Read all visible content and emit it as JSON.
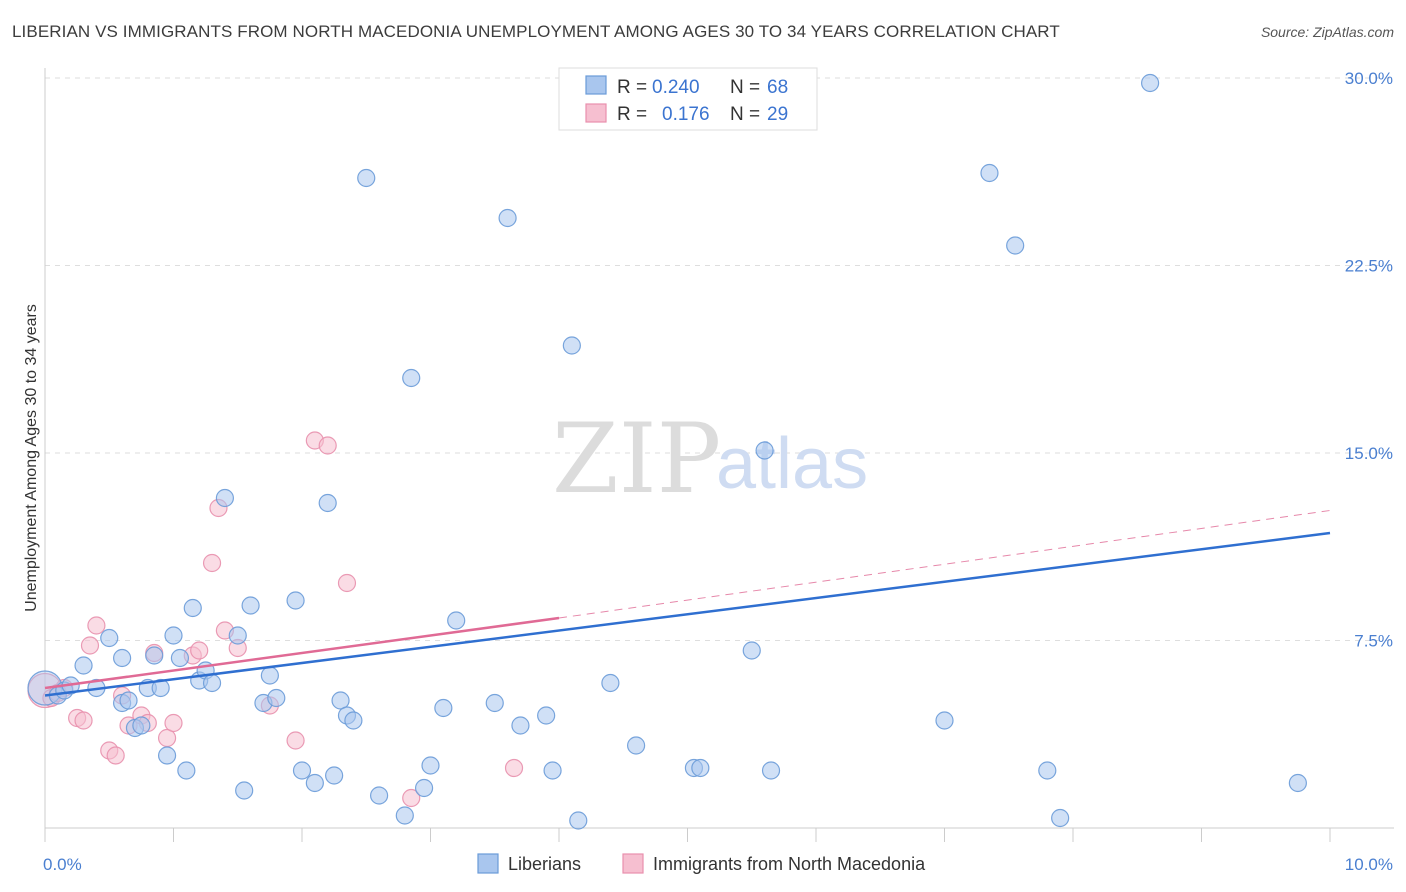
{
  "header": {
    "title": "LIBERIAN VS IMMIGRANTS FROM NORTH MACEDONIA UNEMPLOYMENT AMONG AGES 30 TO 34 YEARS CORRELATION CHART",
    "source": "Source: ZipAtlas.com"
  },
  "watermark": {
    "zip": "ZIP",
    "atlas": "atlas"
  },
  "colors": {
    "blue_fill": "#a9c6ee",
    "blue_stroke": "#6a9bd8",
    "blue_line": "#2f6fd0",
    "pink_fill": "#f6bfd0",
    "pink_stroke": "#e890ad",
    "pink_line": "#e06a95",
    "tick_text": "#4a7fd0",
    "grid": "#dedede"
  },
  "stats_legend": [
    {
      "r_label": "R =",
      "r_value": "0.240",
      "n_label": "N =",
      "n_value": "68"
    },
    {
      "r_label": "R =",
      "r_value": "0.176",
      "n_label": "N =",
      "n_value": "29"
    }
  ],
  "chart_data": {
    "type": "scatter",
    "title": "LIBERIAN VS IMMIGRANTS FROM NORTH MACEDONIA UNEMPLOYMENT AMONG AGES 30 TO 34 YEARS CORRELATION CHART",
    "xlabel": "",
    "ylabel": "Unemployment Among Ages 30 to 34 years",
    "xlim": [
      0,
      10
    ],
    "ylim": [
      0,
      30
    ],
    "x_tick_labels": [
      "0.0%",
      "10.0%"
    ],
    "y_ticks": [
      7.5,
      15.0,
      22.5,
      30.0
    ],
    "y_tick_labels": [
      "7.5%",
      "15.0%",
      "22.5%",
      "30.0%"
    ],
    "legend_position": "bottom-center",
    "series": [
      {
        "name": "Liberians",
        "trend": {
          "x": [
            0,
            10
          ],
          "y": [
            5.3,
            11.8
          ]
        },
        "points": [
          {
            "x": 0.0,
            "y": 5.6,
            "big": true
          },
          {
            "x": 0.1,
            "y": 5.3
          },
          {
            "x": 0.15,
            "y": 5.5
          },
          {
            "x": 0.2,
            "y": 5.7
          },
          {
            "x": 0.3,
            "y": 6.5
          },
          {
            "x": 0.4,
            "y": 5.6
          },
          {
            "x": 0.5,
            "y": 7.6
          },
          {
            "x": 0.6,
            "y": 5.0
          },
          {
            "x": 0.6,
            "y": 6.8
          },
          {
            "x": 0.65,
            "y": 5.1
          },
          {
            "x": 0.7,
            "y": 4.0
          },
          {
            "x": 0.75,
            "y": 4.1
          },
          {
            "x": 0.8,
            "y": 5.6
          },
          {
            "x": 0.85,
            "y": 6.9
          },
          {
            "x": 0.9,
            "y": 5.6
          },
          {
            "x": 0.95,
            "y": 2.9
          },
          {
            "x": 1.0,
            "y": 7.7
          },
          {
            "x": 1.05,
            "y": 6.8
          },
          {
            "x": 1.1,
            "y": 2.3
          },
          {
            "x": 1.15,
            "y": 8.8
          },
          {
            "x": 1.2,
            "y": 5.9
          },
          {
            "x": 1.25,
            "y": 6.3
          },
          {
            "x": 1.3,
            "y": 5.8
          },
          {
            "x": 1.4,
            "y": 13.2
          },
          {
            "x": 1.5,
            "y": 7.7
          },
          {
            "x": 1.55,
            "y": 1.5
          },
          {
            "x": 1.6,
            "y": 8.9
          },
          {
            "x": 1.7,
            "y": 5.0
          },
          {
            "x": 1.75,
            "y": 6.1
          },
          {
            "x": 1.8,
            "y": 5.2
          },
          {
            "x": 1.95,
            "y": 9.1
          },
          {
            "x": 2.0,
            "y": 2.3
          },
          {
            "x": 2.1,
            "y": 1.8
          },
          {
            "x": 2.2,
            "y": 13.0
          },
          {
            "x": 2.25,
            "y": 2.1
          },
          {
            "x": 2.3,
            "y": 5.1
          },
          {
            "x": 2.35,
            "y": 4.5
          },
          {
            "x": 2.4,
            "y": 4.3
          },
          {
            "x": 2.5,
            "y": 26.0
          },
          {
            "x": 2.6,
            "y": 1.3
          },
          {
            "x": 2.8,
            "y": 0.5
          },
          {
            "x": 2.85,
            "y": 18.0
          },
          {
            "x": 2.95,
            "y": 1.6
          },
          {
            "x": 3.0,
            "y": 2.5
          },
          {
            "x": 3.1,
            "y": 4.8
          },
          {
            "x": 3.2,
            "y": 8.3
          },
          {
            "x": 3.5,
            "y": 5.0
          },
          {
            "x": 3.6,
            "y": 24.4
          },
          {
            "x": 3.7,
            "y": 4.1
          },
          {
            "x": 3.9,
            "y": 4.5
          },
          {
            "x": 3.95,
            "y": 2.3
          },
          {
            "x": 4.1,
            "y": 19.3
          },
          {
            "x": 4.15,
            "y": 0.3
          },
          {
            "x": 4.4,
            "y": 5.8
          },
          {
            "x": 4.6,
            "y": 3.3
          },
          {
            "x": 5.05,
            "y": 2.4
          },
          {
            "x": 5.1,
            "y": 2.4
          },
          {
            "x": 5.5,
            "y": 7.1
          },
          {
            "x": 5.6,
            "y": 15.1
          },
          {
            "x": 5.65,
            "y": 2.3
          },
          {
            "x": 7.0,
            "y": 4.3
          },
          {
            "x": 7.35,
            "y": 26.2
          },
          {
            "x": 7.55,
            "y": 23.3
          },
          {
            "x": 7.8,
            "y": 2.3
          },
          {
            "x": 7.9,
            "y": 0.4
          },
          {
            "x": 8.6,
            "y": 29.8
          },
          {
            "x": 9.75,
            "y": 1.8
          }
        ]
      },
      {
        "name": "Immigrants from North Macedonia",
        "trend": {
          "x": [
            0,
            4
          ],
          "y": [
            5.6,
            8.4
          ]
        },
        "trend_extension": {
          "x": [
            4,
            10
          ],
          "y": [
            8.4,
            12.7
          ]
        },
        "points": [
          {
            "x": 0.0,
            "y": 5.5,
            "big": true
          },
          {
            "x": 0.05,
            "y": 5.2
          },
          {
            "x": 0.1,
            "y": 5.4
          },
          {
            "x": 0.15,
            "y": 5.6
          },
          {
            "x": 0.25,
            "y": 4.4
          },
          {
            "x": 0.3,
            "y": 4.3
          },
          {
            "x": 0.35,
            "y": 7.3
          },
          {
            "x": 0.4,
            "y": 8.1
          },
          {
            "x": 0.5,
            "y": 3.1
          },
          {
            "x": 0.55,
            "y": 2.9
          },
          {
            "x": 0.6,
            "y": 5.3
          },
          {
            "x": 0.65,
            "y": 4.1
          },
          {
            "x": 0.75,
            "y": 4.5
          },
          {
            "x": 0.8,
            "y": 4.2
          },
          {
            "x": 0.85,
            "y": 7.0
          },
          {
            "x": 0.95,
            "y": 3.6
          },
          {
            "x": 1.0,
            "y": 4.2
          },
          {
            "x": 1.15,
            "y": 6.9
          },
          {
            "x": 1.2,
            "y": 7.1
          },
          {
            "x": 1.3,
            "y": 10.6
          },
          {
            "x": 1.35,
            "y": 12.8
          },
          {
            "x": 1.4,
            "y": 7.9
          },
          {
            "x": 1.5,
            "y": 7.2
          },
          {
            "x": 1.75,
            "y": 4.9
          },
          {
            "x": 1.95,
            "y": 3.5
          },
          {
            "x": 2.1,
            "y": 15.5
          },
          {
            "x": 2.2,
            "y": 15.3
          },
          {
            "x": 2.35,
            "y": 9.8
          },
          {
            "x": 2.85,
            "y": 1.2
          },
          {
            "x": 3.65,
            "y": 2.4
          }
        ]
      }
    ]
  }
}
